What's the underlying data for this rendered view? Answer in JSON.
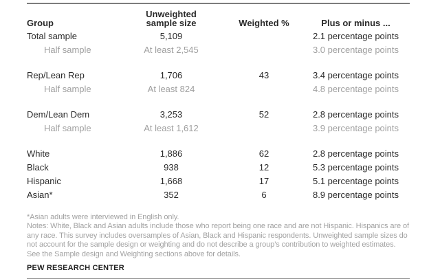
{
  "colors": {
    "text_dark": "#2a2a2a",
    "text_muted": "#9f9f9f",
    "notes_gray": "#a2a2a2",
    "rule_top": "#7d7d7d",
    "rule_bottom": "#8d8d8d",
    "background": "#ffffff"
  },
  "header": {
    "col1": "Group",
    "col2_line1": "Unweighted",
    "col2_line2": "sample size",
    "col3": "Weighted %",
    "col4": "Plus or minus ..."
  },
  "chart_data": {
    "type": "table",
    "columns": [
      "Group",
      "Unweighted sample size",
      "Weighted %",
      "Plus or minus ..."
    ],
    "rows": [
      {
        "group": "Total sample",
        "unweighted": "5,109",
        "weighted": "",
        "moe": "2.1 percentage points"
      },
      {
        "group": "Half sample",
        "unweighted": "At least 2,545",
        "weighted": "",
        "moe": "3.0 percentage points"
      },
      {
        "group": "Rep/Lean Rep",
        "unweighted": "1,706",
        "weighted": "43",
        "moe": "3.4 percentage points"
      },
      {
        "group": "Half sample",
        "unweighted": "At least 824",
        "weighted": "",
        "moe": "4.8 percentage points"
      },
      {
        "group": "Dem/Lean Dem",
        "unweighted": "3,253",
        "weighted": "52",
        "moe": "2.8 percentage points"
      },
      {
        "group": "Half sample",
        "unweighted": "At least 1,612",
        "weighted": "",
        "moe": "3.9 percentage points"
      },
      {
        "group": "White",
        "unweighted": "1,886",
        "weighted": "62",
        "moe": "2.8 percentage points"
      },
      {
        "group": "Black",
        "unweighted": "938",
        "weighted": "12",
        "moe": "5.3 percentage points"
      },
      {
        "group": "Hispanic",
        "unweighted": "1,668",
        "weighted": "17",
        "moe": "5.1 percentage points"
      },
      {
        "group": "Asian*",
        "unweighted": "352",
        "weighted": "6",
        "moe": "8.9 percentage points"
      }
    ]
  },
  "footnote": "*Asian adults were interviewed in English only.",
  "notes": "Notes: White, Black and Asian adults include those who report being one race and are not Hispanic. Hispanics are of any race. This survey includes oversamples of Asian, Black and Hispanic respondents. Unweighted sample sizes do not account for the sample design or weighting and do not describe a group’s contribution to weighted estimates. See the Sample design and Weighting sections above for details.",
  "source_label": "PEW RESEARCH CENTER"
}
